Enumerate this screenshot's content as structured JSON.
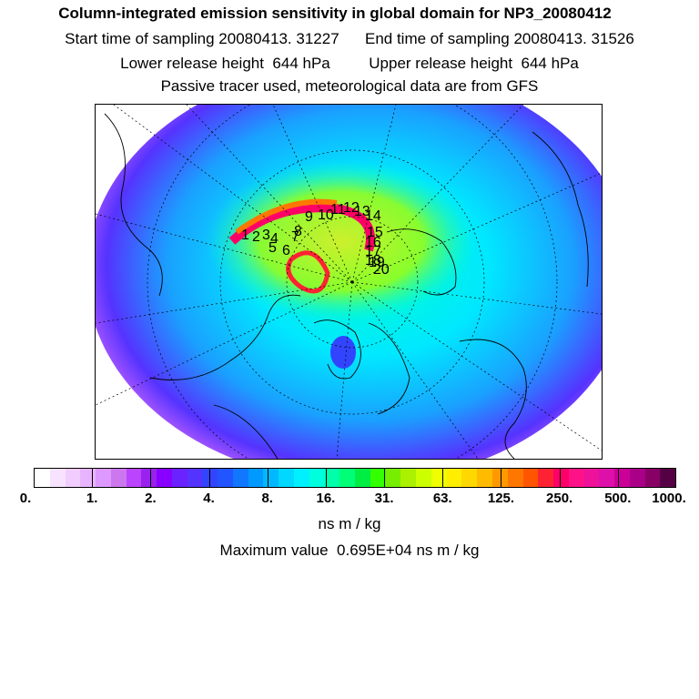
{
  "header": {
    "title": "Column-integrated emission sensitivity in global domain for NP3_20080412",
    "line2": "Start time of sampling 20080413. 31227      End time of sampling 20080413. 31526",
    "line3": "Lower release height  644 hPa         Upper release height  644 hPa",
    "line4": "Passive tracer used, meteorological data are from GFS"
  },
  "map": {
    "projection": "polar stereographic (north pole)",
    "track_labels": [
      "1",
      "2",
      "3",
      "4",
      "5",
      "6",
      "7",
      "8",
      "9",
      "10",
      "11",
      "12",
      "13",
      "14",
      "15",
      "16",
      "17",
      "18",
      "19",
      "20"
    ]
  },
  "colorbar": {
    "colors": [
      "#ffffff",
      "#f7e3ff",
      "#f0ccff",
      "#e8b4ff",
      "#dd99ff",
      "#cc77ee",
      "#bb44ff",
      "#9922ee",
      "#8800ff",
      "#6a22ff",
      "#5533ff",
      "#3344ff",
      "#2255ff",
      "#1177ff",
      "#0099ff",
      "#00b8ff",
      "#00d8ff",
      "#00f0ff",
      "#00ffdd",
      "#00ffaa",
      "#00ff77",
      "#00ee44",
      "#33ff00",
      "#77ee00",
      "#aaf000",
      "#ccff00",
      "#eeff00",
      "#ffee00",
      "#ffd800",
      "#ffbb00",
      "#ff9900",
      "#ff7700",
      "#ff5500",
      "#ff2233",
      "#ff0066",
      "#ff1188",
      "#ee1199",
      "#dd11aa",
      "#cc0099",
      "#aa0088",
      "#880066",
      "#550044"
    ],
    "tick_labels": [
      "0.",
      "1.",
      "2.",
      "4.",
      "8.",
      "16.",
      "31.",
      "63.",
      "125.",
      "250.",
      "500.",
      "1000."
    ],
    "unit": "ns m / kg"
  },
  "footer": {
    "max_value": "Maximum value  0.695E+04 ns m / kg"
  }
}
